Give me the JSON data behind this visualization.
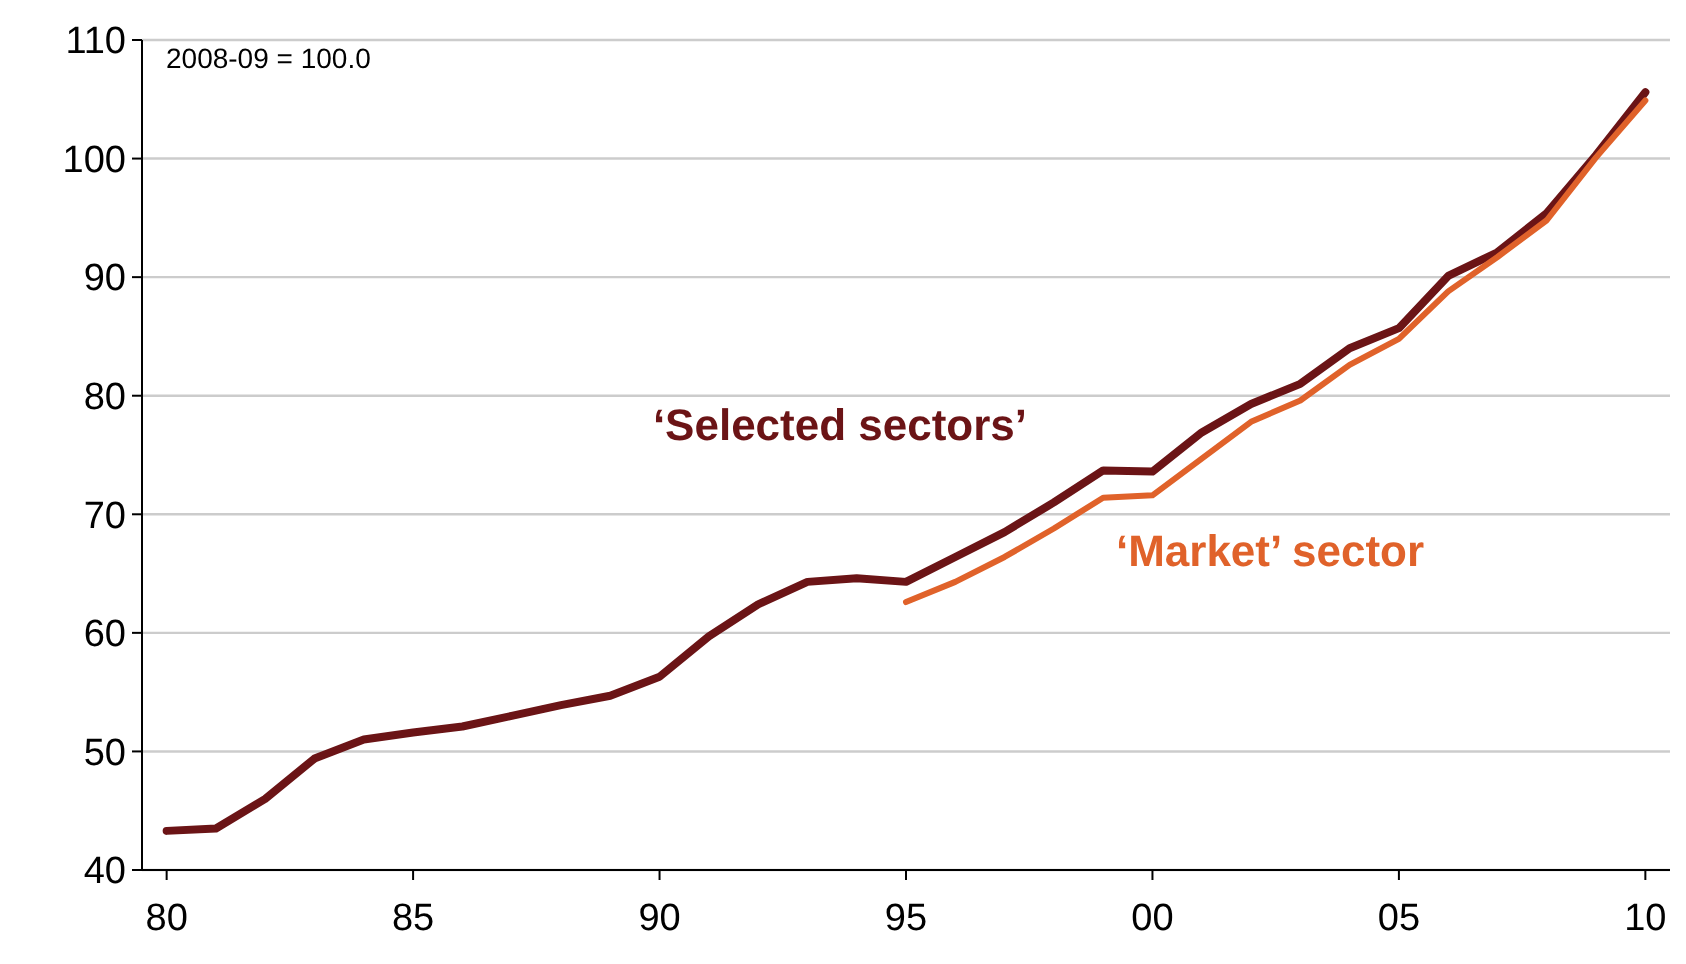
{
  "chart_data": {
    "type": "line",
    "annotations": [
      "2008-09 = 100.0"
    ],
    "x": [
      1980,
      1981,
      1982,
      1983,
      1984,
      1985,
      1986,
      1987,
      1988,
      1989,
      1990,
      1991,
      1992,
      1993,
      1994,
      1995,
      1996,
      1997,
      1998,
      1999,
      2000,
      2001,
      2002,
      2003,
      2004,
      2005,
      2006,
      2007,
      2008,
      2009,
      2010
    ],
    "series": [
      {
        "name": "‘Selected sectors’",
        "color": "#6b1416",
        "values": [
          43.3,
          43.5,
          46.0,
          49.4,
          51.0,
          51.6,
          52.1,
          53.0,
          53.9,
          54.7,
          56.3,
          59.7,
          62.4,
          64.3,
          64.6,
          64.3,
          66.4,
          68.5,
          71.0,
          73.7,
          73.6,
          76.9,
          79.3,
          81.0,
          84.0,
          85.7,
          90.1,
          92.1,
          95.4,
          100.3,
          105.6
        ]
      },
      {
        "name": "‘Market’ sector",
        "color": "#e0622a",
        "x": [
          1995,
          1996,
          1997,
          1998,
          1999,
          2000,
          2001,
          2002,
          2003,
          2004,
          2005,
          2006,
          2007,
          2008,
          2009,
          2010
        ],
        "values": [
          62.6,
          64.3,
          66.4,
          68.8,
          71.4,
          71.6,
          74.7,
          77.8,
          79.6,
          82.6,
          84.8,
          88.8,
          91.7,
          94.8,
          100.1,
          104.9
        ]
      }
    ],
    "xlim": [
      1979.5,
      2010.5
    ],
    "xticks": [
      {
        "value": 1980,
        "label": "80"
      },
      {
        "value": 1985,
        "label": "85"
      },
      {
        "value": 1990,
        "label": "90"
      },
      {
        "value": 1995,
        "label": "95"
      },
      {
        "value": 2000,
        "label": "00"
      },
      {
        "value": 2005,
        "label": "05"
      },
      {
        "value": 2010,
        "label": "10"
      }
    ],
    "ylim": [
      40,
      110
    ],
    "yticks": [
      40,
      50,
      60,
      70,
      80,
      90,
      100,
      110
    ],
    "grid": "y",
    "legend": false,
    "marker": "none",
    "line_style": "solid"
  }
}
